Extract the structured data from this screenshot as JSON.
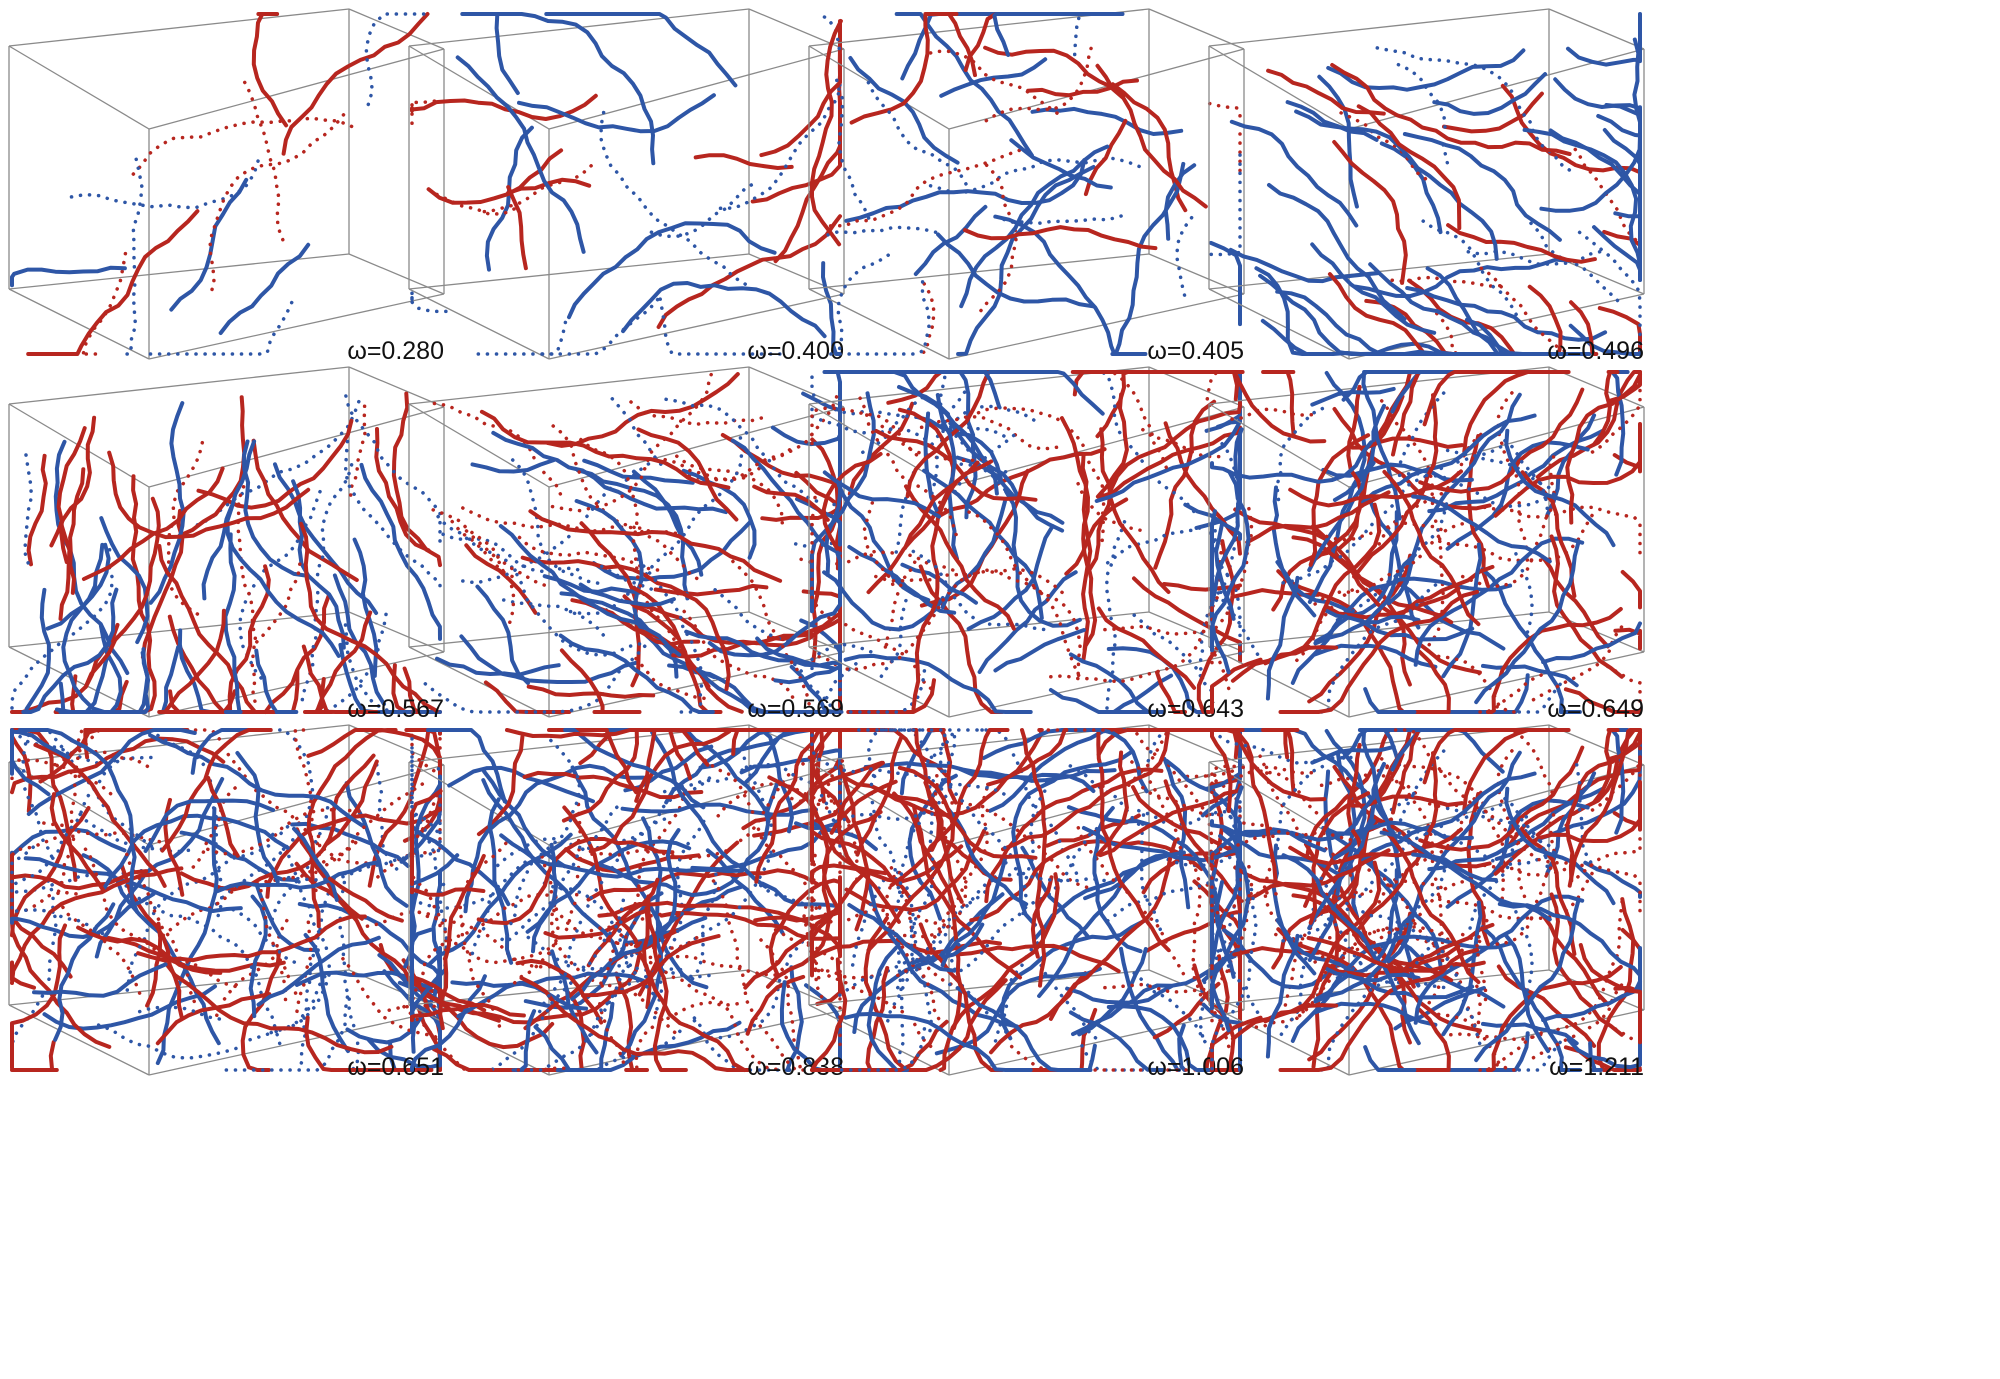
{
  "panels": [
    {
      "label": "ω=0.280"
    },
    {
      "label": "ω=0.400"
    },
    {
      "label": "ω=0.405"
    },
    {
      "label": "ω=0.496"
    },
    {
      "label": "ω=0.567"
    },
    {
      "label": "ω=0.569"
    },
    {
      "label": "ω=0.643"
    },
    {
      "label": "ω=0.649"
    },
    {
      "label": "ω=0.651"
    },
    {
      "label": "ω=0.838"
    },
    {
      "label": "ω=1.006"
    },
    {
      "label": "ω=1.211"
    }
  ]
}
